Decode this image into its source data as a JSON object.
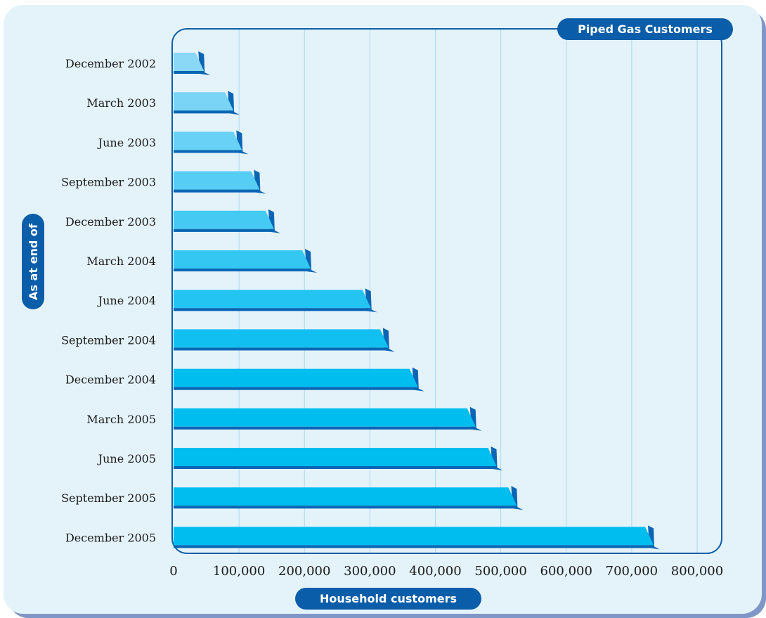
{
  "chart_data": {
    "type": "bar",
    "orientation": "horizontal",
    "title": "Piped Gas Customers",
    "xlabel": "Household customers",
    "ylabel": "As at end of",
    "categories": [
      "December 2002",
      "March 2003",
      "June 2003",
      "September 2003",
      "December 2003",
      "March 2004",
      "June 2004",
      "September 2004",
      "December 2004",
      "March 2005",
      "June 2005",
      "September 2005",
      "December 2005"
    ],
    "values": [
      40000,
      85000,
      98000,
      125000,
      147000,
      203000,
      295000,
      322000,
      367000,
      455000,
      487000,
      518000,
      727000
    ],
    "xlim": [
      0,
      800000
    ],
    "xticks": [
      0,
      100000,
      200000,
      300000,
      400000,
      500000,
      600000,
      700000,
      800000
    ],
    "xtick_labels": [
      "0",
      "100,000",
      "200,000",
      "300,000",
      "400,000",
      "500,000",
      "600,000",
      "700,000",
      "800,000"
    ],
    "grid": "vertical",
    "colors": {
      "bar_light": "#8ad7f6",
      "bar_dark": "#00bdf0",
      "bar_shadow": "#0a66b4",
      "gridline": "#a9d9ee",
      "frame": "#0d5fa6",
      "background": "#e4f3fa"
    }
  }
}
